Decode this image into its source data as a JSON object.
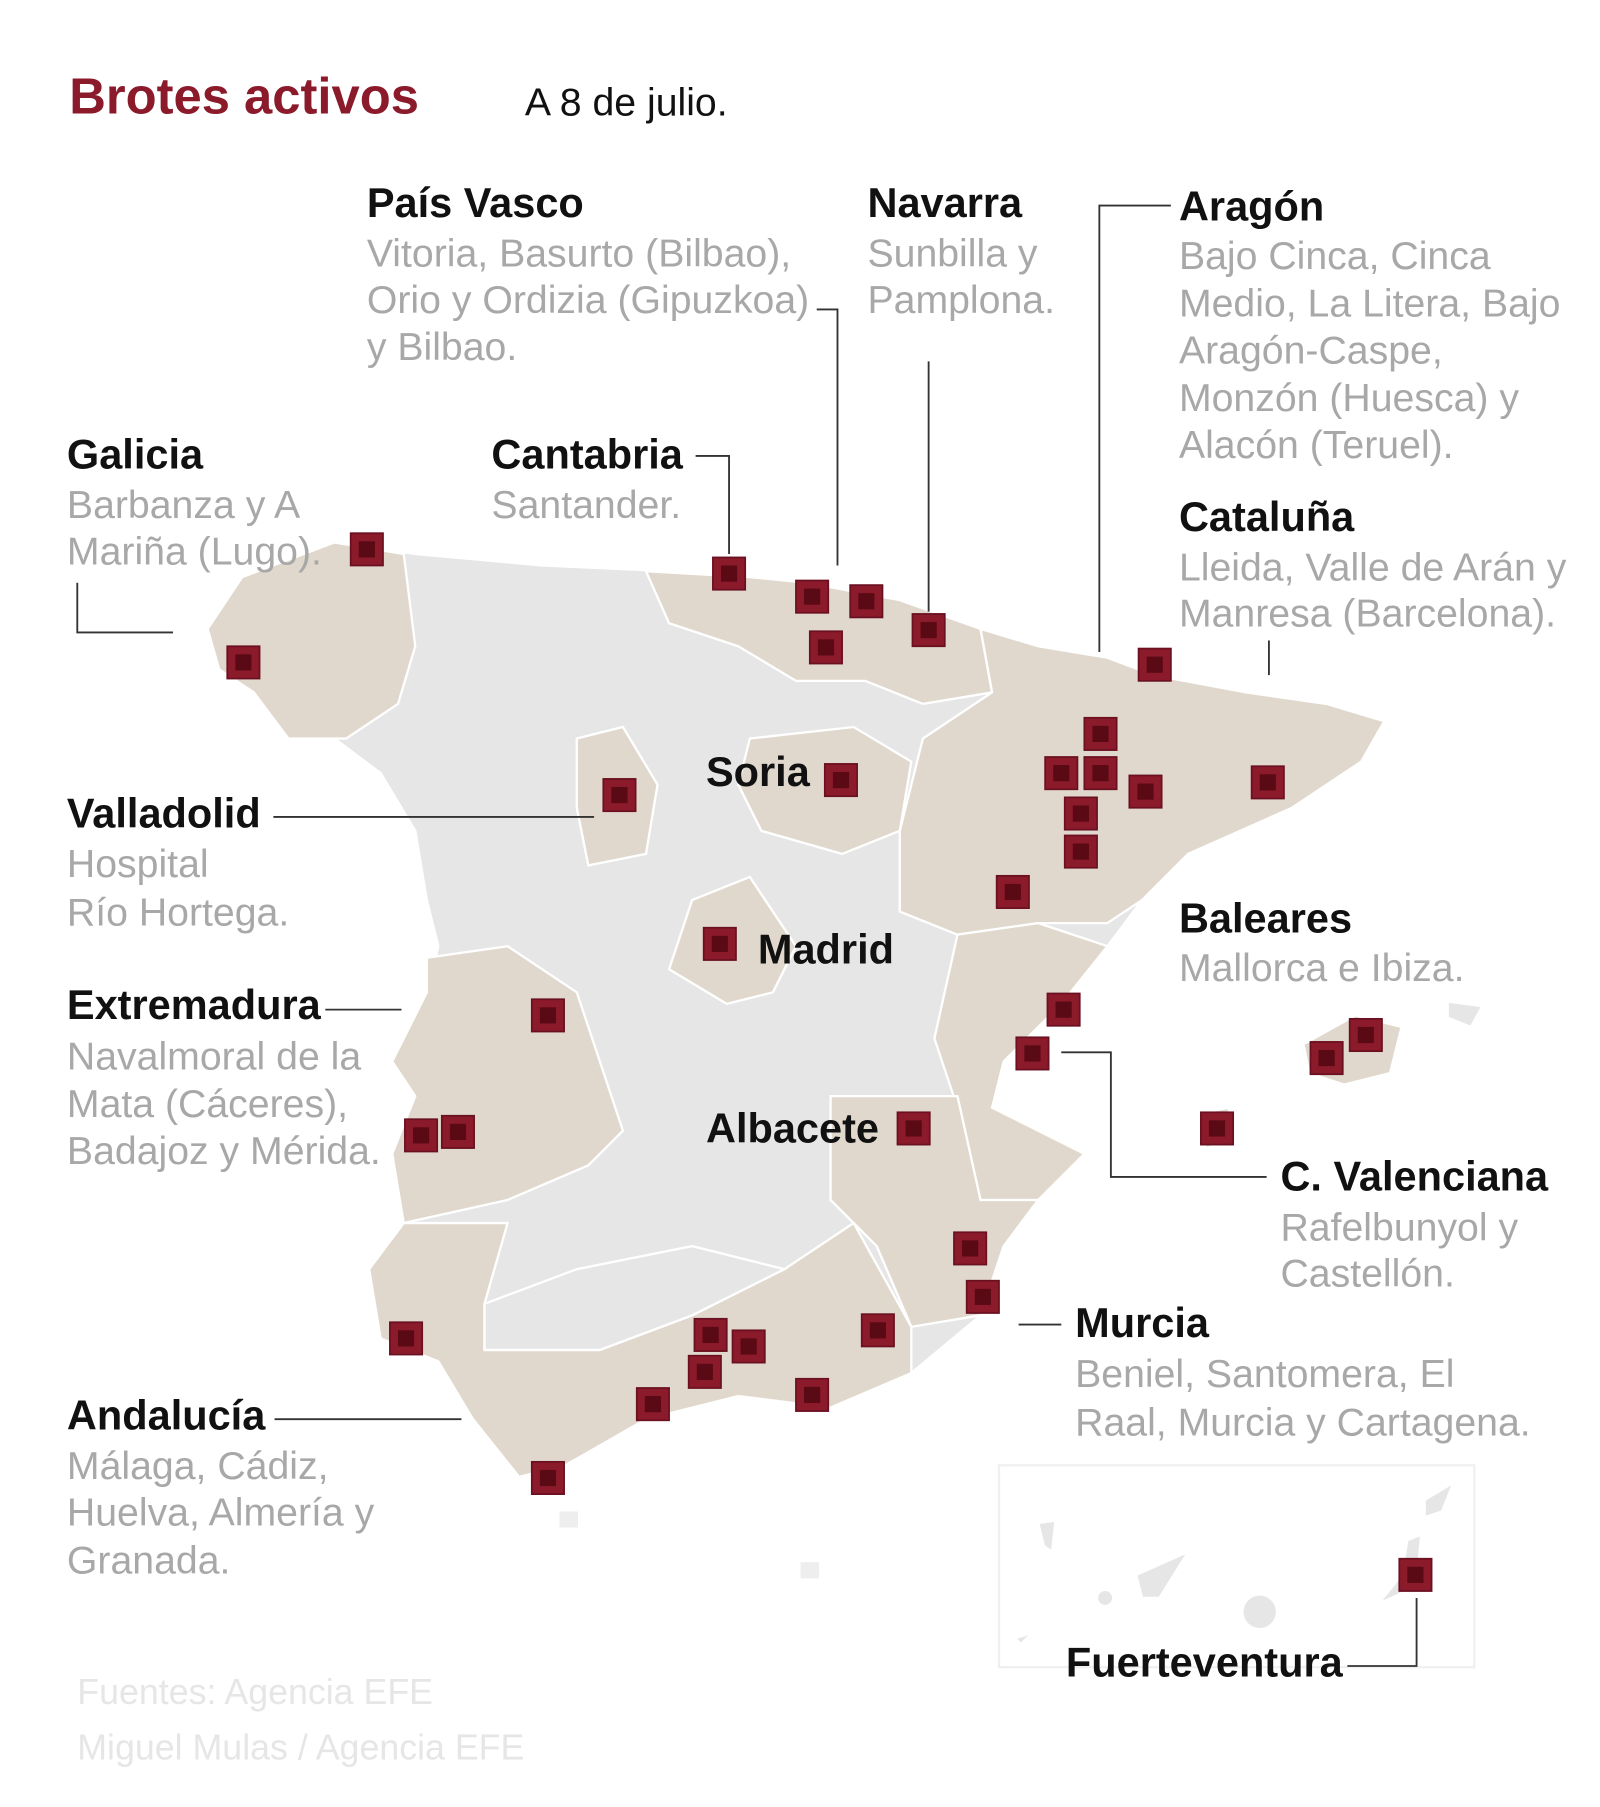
{
  "header": {
    "title": "Brotes activos",
    "date": "A 8 de julio."
  },
  "colors": {
    "accent": "#8b1a2b",
    "marker_outer": "#8b1a2b",
    "marker_inner": "#5a0a14",
    "land": "#e6e6e6",
    "affected": "#e0d8cc"
  },
  "regions": {
    "pais_vasco": {
      "name": "País Vasco",
      "lines": [
        "Vitoria, Basurto (Bilbao),",
        "Orio y Ordizia (Gipuzkoa)",
        "y Bilbao."
      ]
    },
    "navarra": {
      "name": "Navarra",
      "lines": [
        "Sunbilla y",
        "Pamplona."
      ]
    },
    "aragon": {
      "name": "Aragón",
      "lines": [
        "Bajo Cinca, Cinca",
        "Medio, La Litera,  Bajo",
        "Aragón-Caspe,",
        "Monzón (Huesca) y",
        "Alacón (Teruel)."
      ]
    },
    "cataluna": {
      "name": "Cataluña",
      "lines": [
        "Lleida, Valle de Arán y",
        "Manresa (Barcelona)."
      ]
    },
    "cantabria": {
      "name": "Cantabria",
      "lines": [
        "Santander."
      ]
    },
    "galicia": {
      "name": "Galicia",
      "lines": [
        "Barbanza y A",
        "Mariña (Lugo)."
      ]
    },
    "valladolid": {
      "name": "Valladolid",
      "lines": [
        "Hospital",
        "Río Hortega."
      ]
    },
    "soria": {
      "name": "Soria"
    },
    "madrid": {
      "name": "Madrid"
    },
    "extremadura": {
      "name": "Extremadura",
      "lines": [
        "Navalmoral de la",
        "Mata (Cáceres),",
        "Badajoz y Mérida."
      ]
    },
    "albacete": {
      "name": "Albacete"
    },
    "baleares": {
      "name": "Baleares",
      "lines": [
        "Mallorca e Ibiza."
      ]
    },
    "valenciana": {
      "name": "C. Valenciana",
      "lines": [
        "Rafelbunyol y",
        "Castellón."
      ]
    },
    "murcia": {
      "name": "Murcia",
      "lines": [
        "Beniel, Santomera, El",
        "Raal, Murcia y Cartagena."
      ]
    },
    "andalucia": {
      "name": "Andalucía",
      "lines": [
        "Málaga, Cádiz,",
        "Huelva, Almería y",
        "Granada."
      ]
    },
    "fuerteventura": {
      "name": "Fuerteventura"
    }
  },
  "footer": {
    "source": "Fuentes: Agencia EFE",
    "credit": "Miguel Mulas / Agencia EFE"
  }
}
